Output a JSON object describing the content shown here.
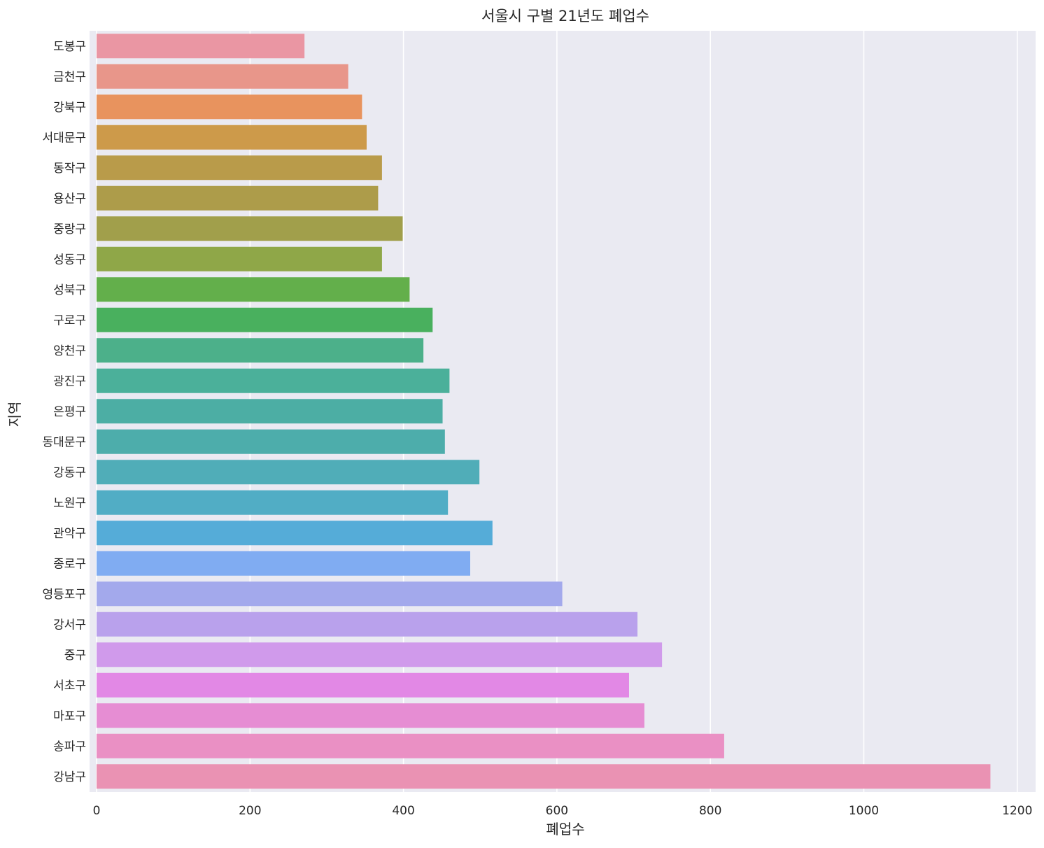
{
  "chart_data": {
    "type": "bar",
    "orientation": "horizontal",
    "title": "서울시 구별 21년도 폐업수",
    "xlabel": "폐업수",
    "ylabel": "지역",
    "xlim": [
      0,
      1230
    ],
    "xticks": [
      0,
      200,
      400,
      600,
      800,
      1000,
      1200
    ],
    "grid": true,
    "categories": [
      "도봉구",
      "금천구",
      "강북구",
      "서대문구",
      "동작구",
      "용산구",
      "중랑구",
      "성동구",
      "성북구",
      "구로구",
      "양천구",
      "광진구",
      "은평구",
      "동대문구",
      "강동구",
      "노원구",
      "관악구",
      "종로구",
      "영등포구",
      "강서구",
      "중구",
      "서초구",
      "마포구",
      "송파구",
      "강남구"
    ],
    "values": [
      271,
      328,
      346,
      352,
      372,
      367,
      399,
      372,
      408,
      438,
      426,
      460,
      451,
      454,
      499,
      458,
      516,
      487,
      607,
      705,
      737,
      694,
      714,
      818,
      1165
    ],
    "colors": [
      "#ea96a3",
      "#e8968a",
      "#e8935e",
      "#cd9a4a",
      "#b99b4a",
      "#ad9c4a",
      "#a19f4b",
      "#8fa748",
      "#63af4b",
      "#49b05e",
      "#4cb08a",
      "#4bb09a",
      "#4caea4",
      "#4dadab",
      "#50adb8",
      "#51adc5",
      "#55acd8",
      "#80acf2",
      "#a3a9ec",
      "#b9a1ec",
      "#d09aeb",
      "#e288e5",
      "#e68dd3",
      "#ea90c4",
      "#ea92b3"
    ]
  }
}
